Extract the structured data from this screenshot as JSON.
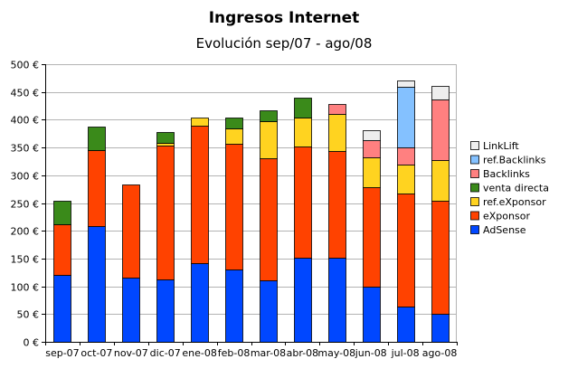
{
  "chart_data": {
    "type": "bar",
    "stacked": true,
    "title": "Ingresos Internet",
    "subtitle": "Evolución sep/07 - ago/08",
    "categories": [
      "sep-07",
      "oct-07",
      "nov-07",
      "dic-07",
      "ene-08",
      "feb-08",
      "mar-08",
      "abr-08",
      "may-08",
      "jun-08",
      "jul-08",
      "ago-08"
    ],
    "y_ticks": [
      "0 €",
      "50 €",
      "100 €",
      "150 €",
      "200 €",
      "250 €",
      "300 €",
      "350 €",
      "400 €",
      "450 €",
      "500 €"
    ],
    "ylim": [
      0,
      500
    ],
    "grid": true,
    "legend_position": "right",
    "series": [
      {
        "name": "AdSense",
        "color": "#0047ff",
        "values": [
          120,
          209,
          116,
          113,
          141,
          131,
          110,
          152,
          151,
          100,
          64,
          51
        ]
      },
      {
        "name": "eXponsor",
        "color": "#ff4200",
        "values": [
          92,
          137,
          167,
          240,
          248,
          225,
          220,
          199,
          192,
          178,
          203,
          203
        ]
      },
      {
        "name": "ref.eXponsor",
        "color": "#ffd320",
        "values": [
          0,
          0,
          0,
          5,
          15,
          28,
          67,
          53,
          67,
          55,
          53,
          73
        ]
      },
      {
        "name": "venta directa",
        "color": "#3a8a1a",
        "values": [
          42,
          41,
          0,
          20,
          0,
          20,
          20,
          35,
          0,
          0,
          0,
          0
        ]
      },
      {
        "name": "Backlinks",
        "color": "#ff8080",
        "values": [
          0,
          0,
          0,
          0,
          0,
          0,
          0,
          0,
          19,
          30,
          30,
          110
        ]
      },
      {
        "name": "ref.Backlinks",
        "color": "#84c1ff",
        "values": [
          0,
          0,
          0,
          0,
          0,
          0,
          0,
          0,
          0,
          0,
          110,
          0
        ]
      },
      {
        "name": "LinkLift",
        "color": "#eeeeee",
        "values": [
          0,
          0,
          0,
          0,
          0,
          0,
          0,
          0,
          0,
          18,
          10,
          24
        ]
      }
    ]
  }
}
